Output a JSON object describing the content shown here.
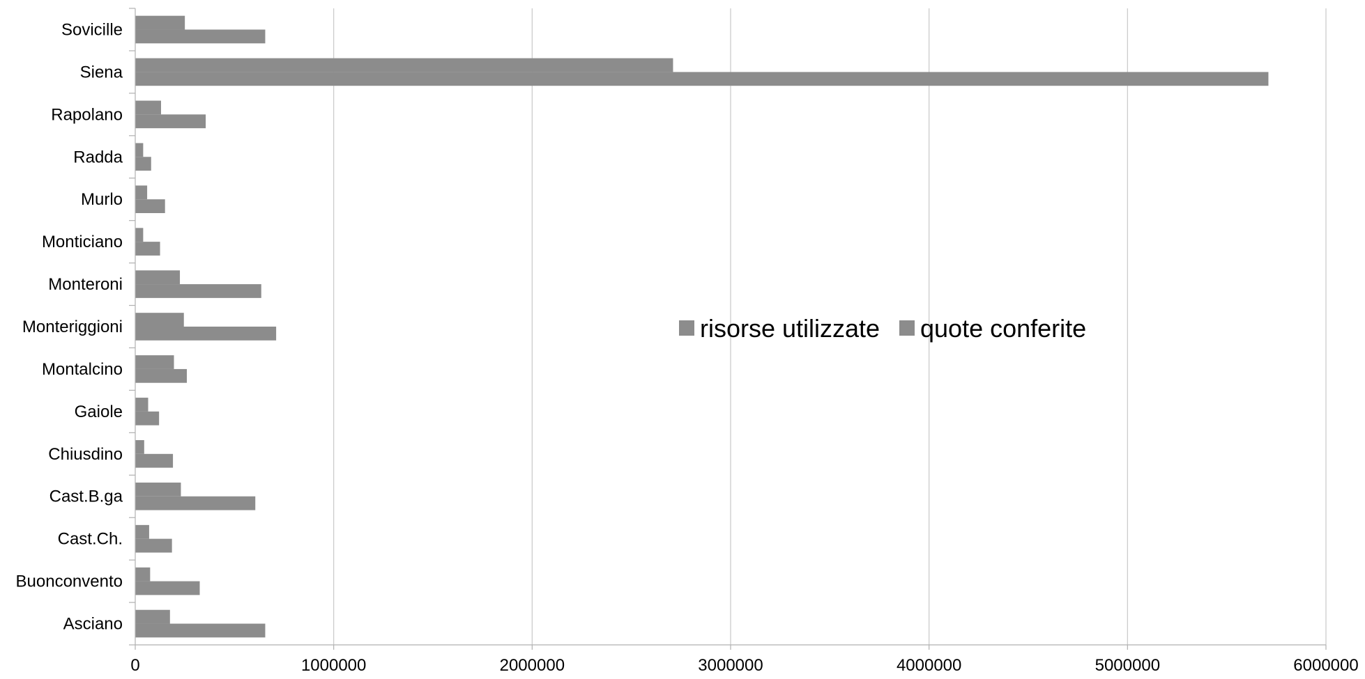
{
  "chart_data": {
    "type": "bar",
    "orientation": "horizontal",
    "title": "",
    "xlabel": "",
    "ylabel": "",
    "xlim": [
      0,
      6000000
    ],
    "x_ticks": [
      "0",
      "1000000",
      "2000000",
      "3000000",
      "4000000",
      "5000000",
      "6000000"
    ],
    "grid": true,
    "legend_position": "center-right",
    "categories": [
      "Sovicille",
      "Siena",
      "Rapolano",
      "Radda",
      "Murlo",
      "Monticiano",
      "Monteroni",
      "Monteriggioni",
      "Montalcino",
      "Gaiole",
      "Chiusdino",
      "Cast.B.ga",
      "Cast.Ch.",
      "Buonconvento",
      "Asciano"
    ],
    "series": [
      {
        "name": "risorse utilizzate",
        "color": "#8c8c8c",
        "values": [
          250000,
          2710000,
          130000,
          40000,
          60000,
          40000,
          225000,
          245000,
          195000,
          65000,
          45000,
          230000,
          70000,
          75000,
          175000
        ]
      },
      {
        "name": "quote conferite",
        "color": "#8c8c8c",
        "values": [
          655000,
          5710000,
          355000,
          80000,
          150000,
          125000,
          635000,
          710000,
          260000,
          120000,
          190000,
          605000,
          185000,
          325000,
          655000
        ]
      }
    ]
  }
}
